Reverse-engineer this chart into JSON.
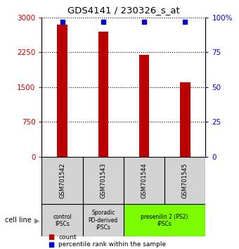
{
  "title": "GDS4141 / 230326_s_at",
  "samples": [
    "GSM701542",
    "GSM701543",
    "GSM701544",
    "GSM701545"
  ],
  "counts": [
    2850,
    2700,
    2200,
    1600
  ],
  "percentiles": [
    97,
    97,
    97,
    97
  ],
  "ylim_left": [
    0,
    3000
  ],
  "ylim_right": [
    0,
    100
  ],
  "yticks_left": [
    0,
    750,
    1500,
    2250,
    3000
  ],
  "yticks_right": [
    0,
    25,
    50,
    75,
    100
  ],
  "ytick_labels_left": [
    "0",
    "750",
    "1500",
    "2250",
    "3000"
  ],
  "ytick_labels_right": [
    "0",
    "25",
    "50",
    "75",
    "100%"
  ],
  "bar_color": "#bb0000",
  "dot_color": "#0000cc",
  "cell_line_label": "cell line",
  "legend_count_label": "count",
  "legend_percentile_label": "percentile rank within the sample",
  "bar_width": 0.25,
  "tick_color_left": "#cc0000",
  "tick_color_right": "#0000cc",
  "gsm_row_color": "#d3d3d3",
  "group_defs": [
    {
      "start": 0,
      "end": 0,
      "label": "control\nIPSCs",
      "color": "#d3d3d3"
    },
    {
      "start": 1,
      "end": 1,
      "label": "Sporadic\nPD-derived\niPSCs",
      "color": "#d3d3d3"
    },
    {
      "start": 2,
      "end": 3,
      "label": "presenilin 2 (PS2)\niPSCs",
      "color": "#7cfc00"
    }
  ]
}
